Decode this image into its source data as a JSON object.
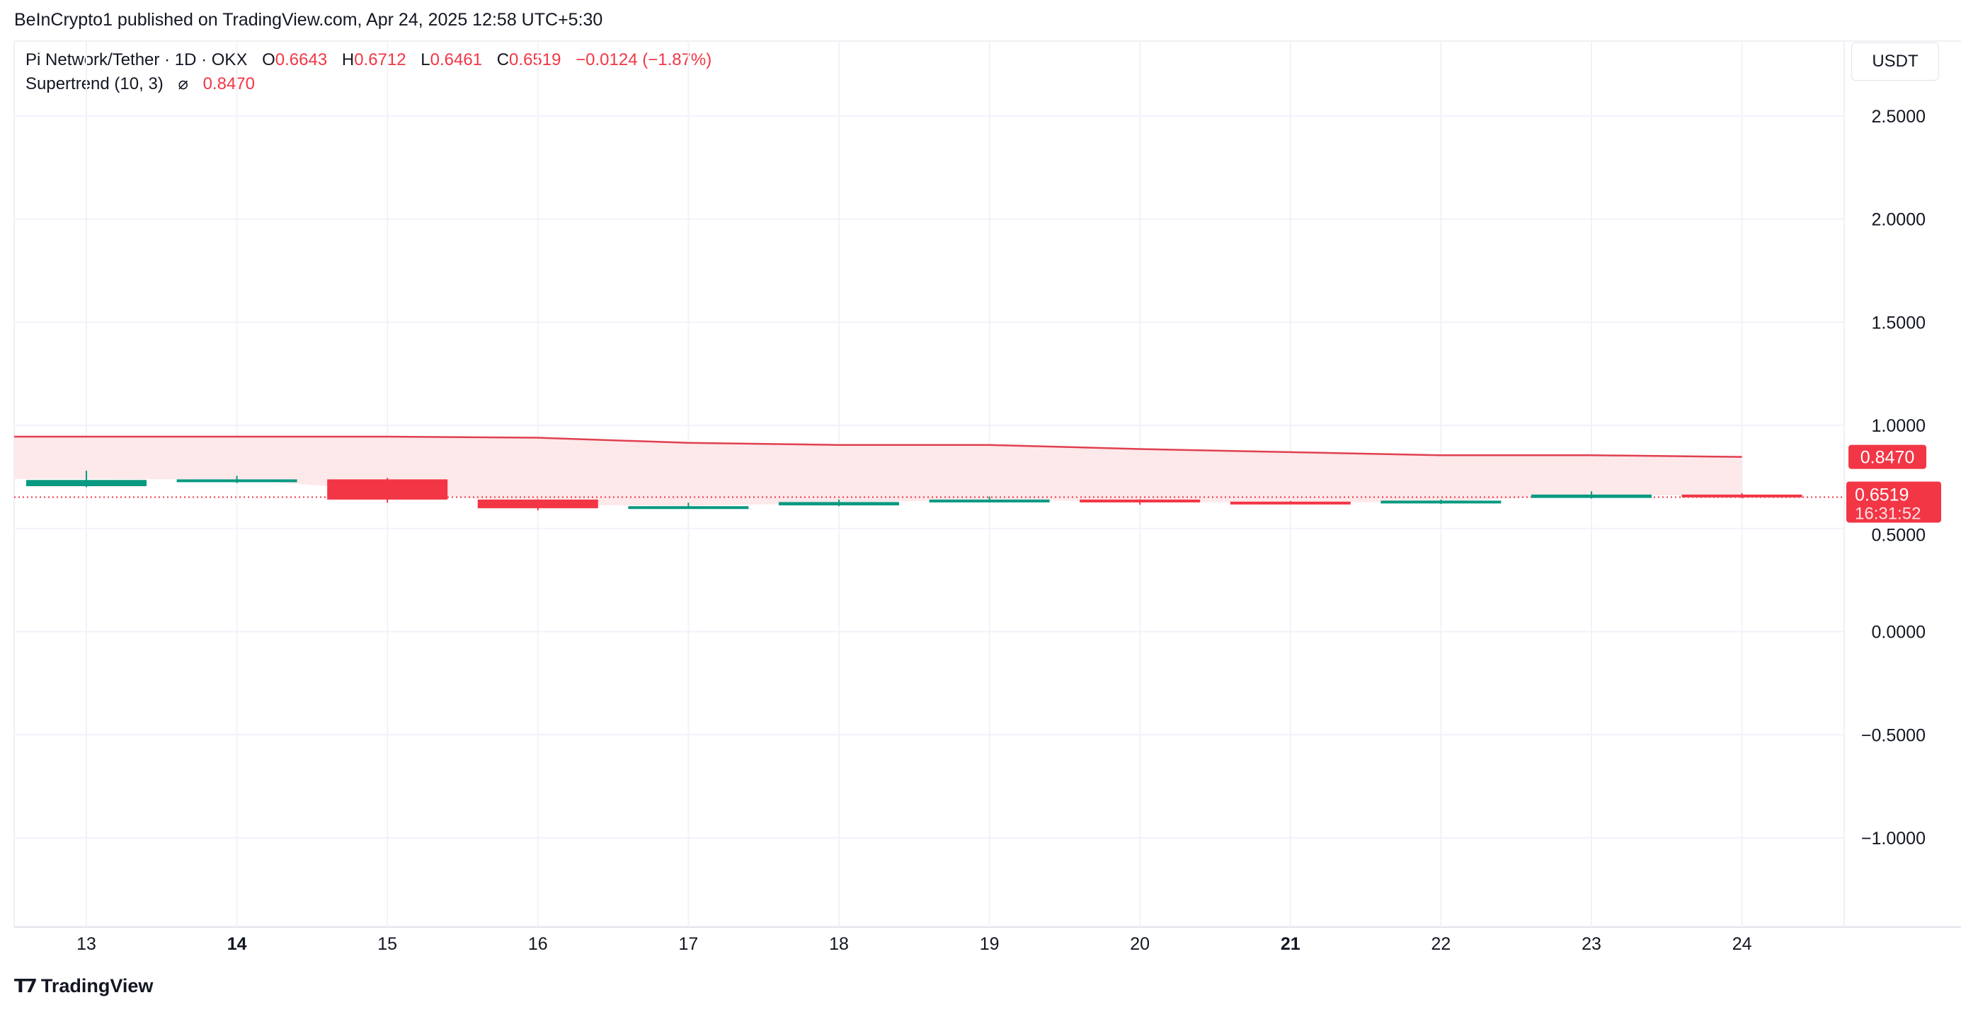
{
  "published": "BeInCrypto1 published on TradingView.com, Apr 24, 2025 12:58 UTC+5:30",
  "legend": {
    "symbol": "Pi Network/Tether · 1D · OKX",
    "o_label": "O",
    "o": "0.6643",
    "h_label": "H",
    "h": "0.6712",
    "l_label": "L",
    "l": "0.6461",
    "c_label": "C",
    "c": "0.6519",
    "change": "−0.0124 (−1.87%)",
    "indicator": "Supertrend (10, 3)",
    "indicator_icon": "hidden-eye-icon",
    "indicator_value": "0.8470"
  },
  "currency": "USDT",
  "brand": "TradingView",
  "colors": {
    "up": "#089981",
    "down": "#f23645",
    "supertrend": "#e0404f",
    "fill": "#fde8ea"
  },
  "chart_data": {
    "type": "candlestick",
    "categories": [
      "13",
      "14",
      "15",
      "16",
      "17",
      "18",
      "19",
      "20",
      "21",
      "22",
      "23",
      "24"
    ],
    "bold_ticks": [
      "14",
      "21"
    ],
    "ohlc": [
      [
        0.705,
        0.78,
        0.7,
        0.735
      ],
      [
        0.728,
        0.755,
        0.72,
        0.738
      ],
      [
        0.738,
        0.745,
        0.625,
        0.64
      ],
      [
        0.64,
        0.642,
        0.588,
        0.598
      ],
      [
        0.598,
        0.625,
        0.596,
        0.608
      ],
      [
        0.612,
        0.64,
        0.608,
        0.628
      ],
      [
        0.63,
        0.655,
        0.626,
        0.64
      ],
      [
        0.64,
        0.642,
        0.615,
        0.628
      ],
      [
        0.63,
        0.633,
        0.618,
        0.625
      ],
      [
        0.622,
        0.64,
        0.619,
        0.635
      ],
      [
        0.648,
        0.68,
        0.645,
        0.6643
      ],
      [
        0.6643,
        0.6712,
        0.6461,
        0.6519
      ]
    ],
    "supertrend": [
      0.945,
      0.945,
      0.945,
      0.94,
      0.915,
      0.905,
      0.905,
      0.885,
      0.87,
      0.855,
      0.855,
      0.847
    ],
    "y_ticks": [
      "2.5000",
      "2.0000",
      "1.5000",
      "1.0000",
      "0.5000",
      "0.0000",
      "−0.5000",
      "−1.0000"
    ],
    "y_tick_values": [
      2.5,
      2.0,
      1.5,
      1.0,
      0.5,
      0.0,
      -0.5,
      -1.0
    ],
    "ylim": [
      -1.45,
      2.95
    ],
    "grid": true,
    "last_price_label": "0.6519",
    "countdown": "16:31:52",
    "supertrend_label": "0.8470"
  }
}
